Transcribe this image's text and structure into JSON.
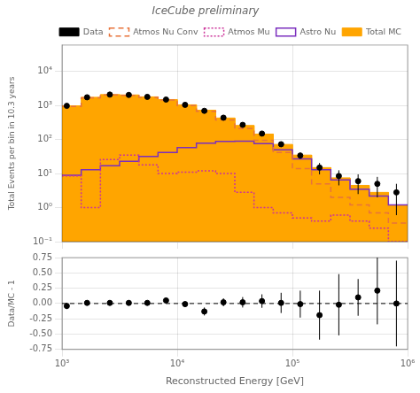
{
  "chart_data": [
    {
      "type": "histogram",
      "title": "IceCube preliminary",
      "ylabel": "Total Events per bin in 10.3 years",
      "log": true,
      "xlim": [
        1000,
        1000000
      ],
      "ylim": [
        0.1,
        60000
      ],
      "xticks": [
        1000,
        10000,
        100000,
        1000000
      ],
      "yticks": [
        {
          "value": 0.1,
          "label": "10⁻¹"
        },
        {
          "value": 1,
          "label": "10⁰"
        },
        {
          "value": 10,
          "label": "10¹"
        },
        {
          "value": 100,
          "label": "10²"
        },
        {
          "value": 1000,
          "label": "10³"
        },
        {
          "value": 10000,
          "label": "10⁴"
        }
      ],
      "grid": true,
      "legend": "upper right",
      "tick_labels": "y",
      "bins": [
        1000,
        1468,
        2154,
        3162,
        4642,
        6813,
        10000,
        14678,
        21544,
        31623,
        46416,
        68129,
        100000,
        146780,
        215443,
        316228,
        464159,
        681292,
        1000000
      ],
      "series": [
        {
          "name": "Total MC",
          "type": "area",
          "color": "#FFA500",
          "values": [
            980,
            1750,
            2100,
            2050,
            1800,
            1500,
            1050,
            730,
            430,
            260,
            145,
            72,
            35,
            15,
            7.5,
            4.5,
            2.8,
            1.2
          ]
        },
        {
          "name": "Atmos Nu Conv",
          "type": "line",
          "line_style": "dashed",
          "color": "#E8733A",
          "values": [
            940,
            1700,
            2050,
            2000,
            1750,
            1450,
            1000,
            680,
            380,
            210,
            95,
            42,
            14,
            5,
            2.0,
            1.2,
            0.7,
            0.35
          ]
        },
        {
          "name": "Atmos Mu",
          "type": "line",
          "line_style": "dotted",
          "color": "#CC3399",
          "values": [
            8.5,
            1.0,
            26,
            35,
            18,
            10,
            11,
            12,
            10,
            2.8,
            1.0,
            0.7,
            0.5,
            0.4,
            0.6,
            0.4,
            0.25,
            0.1
          ]
        },
        {
          "name": "Astro Nu",
          "type": "line",
          "line_style": "solid",
          "color": "#7B2FBE",
          "values": [
            9,
            13,
            17,
            23,
            32,
            42,
            58,
            78,
            88,
            90,
            76,
            50,
            27,
            13,
            6.5,
            3.5,
            2.2,
            1.2
          ]
        },
        {
          "name": "Data",
          "type": "scatter",
          "marker": "circle",
          "color": "black",
          "x": [
            1100,
            1650,
            2600,
            3800,
            5500,
            8000,
            11700,
            17200,
            25200,
            37000,
            54400,
            79800,
            117000,
            172000,
            253000,
            372000,
            546000,
            800000
          ],
          "values": [
            980,
            1750,
            2100,
            2050,
            1800,
            1500,
            1050,
            700,
            440,
            270,
            150,
            73,
            34,
            15,
            8.5,
            6.0,
            5.0,
            2.8
          ],
          "yerr_lo": [
            45,
            58,
            63,
            62,
            58,
            52,
            42,
            35,
            28,
            21,
            16,
            11,
            7,
            5.5,
            4.0,
            3.5,
            3.0,
            2.2
          ],
          "yerr_hi": [
            45,
            58,
            63,
            62,
            58,
            52,
            42,
            35,
            28,
            21,
            16,
            11,
            7,
            5.5,
            4.0,
            3.5,
            3.0,
            2.2
          ]
        }
      ]
    },
    {
      "type": "scatter",
      "xlabel": "Reconstructed Energy [GeV]",
      "ylabel": "Data/MC - 1",
      "log": "x",
      "xlim": [
        1000,
        1000000
      ],
      "ylim": [
        -0.75,
        0.75
      ],
      "xticks": [
        {
          "value": 1000,
          "label": "10³"
        },
        {
          "value": 10000,
          "label": "10⁴"
        },
        {
          "value": 100000,
          "label": "10⁵"
        },
        {
          "value": 1000000,
          "label": "10⁶"
        }
      ],
      "yticks": [
        {
          "value": -0.75,
          "label": "-0.75"
        },
        {
          "value": -0.5,
          "label": "-0.50"
        },
        {
          "value": -0.25,
          "label": "-0.25"
        },
        {
          "value": 0,
          "label": "0.00"
        },
        {
          "value": 0.25,
          "label": "0.25"
        },
        {
          "value": 0.5,
          "label": "0.50"
        },
        {
          "value": 0.75,
          "label": "0.75"
        }
      ],
      "grid": true,
      "marker": "circle",
      "color": "black",
      "hline": 0,
      "x": [
        1100,
        1650,
        2600,
        3800,
        5500,
        8000,
        11700,
        17200,
        25200,
        37000,
        54400,
        79800,
        117000,
        172000,
        253000,
        372000,
        546000,
        800000
      ],
      "values": [
        -0.04,
        0.01,
        0.01,
        0.01,
        0.01,
        0.05,
        -0.01,
        -0.13,
        0.02,
        0.02,
        0.04,
        0.01,
        -0.01,
        -0.19,
        -0.02,
        0.1,
        0.21,
        0.0
      ],
      "yerr_lo": [
        0.05,
        0.035,
        0.035,
        0.035,
        0.035,
        0.04,
        0.045,
        0.065,
        0.065,
        0.085,
        0.11,
        0.165,
        0.22,
        0.4,
        0.5,
        0.3,
        0.55,
        0.7
      ],
      "yerr_hi": [
        0.05,
        0.035,
        0.035,
        0.035,
        0.035,
        0.04,
        0.045,
        0.065,
        0.065,
        0.085,
        0.11,
        0.165,
        0.22,
        0.4,
        0.5,
        0.3,
        0.55,
        0.7
      ]
    }
  ]
}
